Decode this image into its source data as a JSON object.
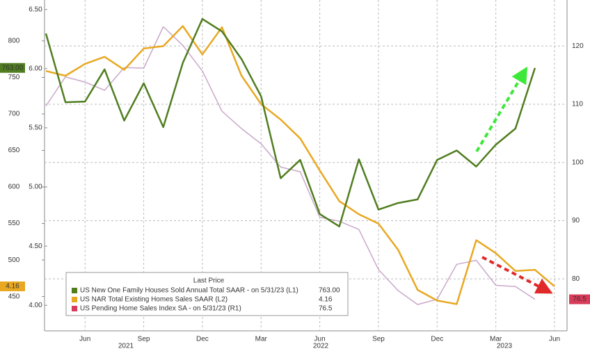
{
  "chart_data": {
    "type": "line",
    "categories": [
      null,
      null,
      "Jun",
      null,
      null,
      "Sep",
      null,
      null,
      "Dec",
      null,
      null,
      "Mar",
      null,
      null,
      "Jun",
      null,
      null,
      "Sep",
      null,
      null,
      "Dec",
      null,
      null,
      "Mar",
      null,
      null,
      "Jun"
    ],
    "year_labels": [
      "2021",
      "2022",
      "2023"
    ],
    "legend_title": "Last Price",
    "ylim": [
      404,
      856
    ],
    "yticks": [
      450,
      500,
      550,
      600,
      650,
      700,
      750,
      800
    ],
    "y2lim": [
      3.79,
      6.58
    ],
    "y2ticks": [
      {
        "value": 4.0,
        "label": "4.00"
      },
      {
        "value": 4.5,
        "label": "4.50"
      },
      {
        "value": 5.0,
        "label": "5.00"
      },
      {
        "value": 5.5,
        "label": "5.50"
      },
      {
        "value": 6.0,
        "label": "6.00"
      },
      {
        "value": 6.5,
        "label": "6.50"
      }
    ],
    "y3lim": [
      71.2,
      127.9
    ],
    "y3ticks": [
      80,
      90,
      100,
      110,
      120
    ],
    "grid": true,
    "series": [
      {
        "name": "US New One Family Houses Sold Annual Total SAAR - on 5/31/23 (L1)",
        "color": "#4f7d1f",
        "legend_color": "#4f7d1f",
        "axis": "y",
        "last_price": "763.00",
        "values": [
          810,
          716,
          717,
          761,
          691,
          742,
          682,
          770,
          830,
          813,
          775,
          724,
          612,
          637,
          563,
          546,
          638,
          569,
          578,
          583,
          637,
          650,
          628,
          658,
          680,
          763,
          null
        ]
      },
      {
        "name": "US NAR Total Existing Homes Sales SAAR (L2)",
        "color": "#e8a822",
        "legend_color": "#e8a822",
        "axis": "y2",
        "last_price": "4.16",
        "values": [
          5.98,
          5.94,
          6.04,
          6.1,
          5.99,
          6.17,
          6.19,
          6.36,
          6.12,
          6.35,
          5.94,
          5.7,
          5.57,
          5.41,
          5.14,
          4.88,
          4.77,
          4.69,
          4.47,
          4.13,
          4.04,
          4.01,
          4.55,
          4.44,
          4.29,
          4.3,
          4.16
        ]
      },
      {
        "name": "US Pending Home Sales Index SA - on 5/31/23 (R1)",
        "color": "#c9a8c9",
        "legend_color": "#d83a5a",
        "axis": "y3",
        "last_price": "76.5",
        "values": [
          109.7,
          114.7,
          113.8,
          112.4,
          116.3,
          116.2,
          123.3,
          120.1,
          115.7,
          108.8,
          105.8,
          103.2,
          99.2,
          98.4,
          90.6,
          89.9,
          88.5,
          81.6,
          78.0,
          75.6,
          76.5,
          82.5,
          83.2,
          78.9,
          78.7,
          76.5,
          null
        ]
      }
    ]
  }
}
